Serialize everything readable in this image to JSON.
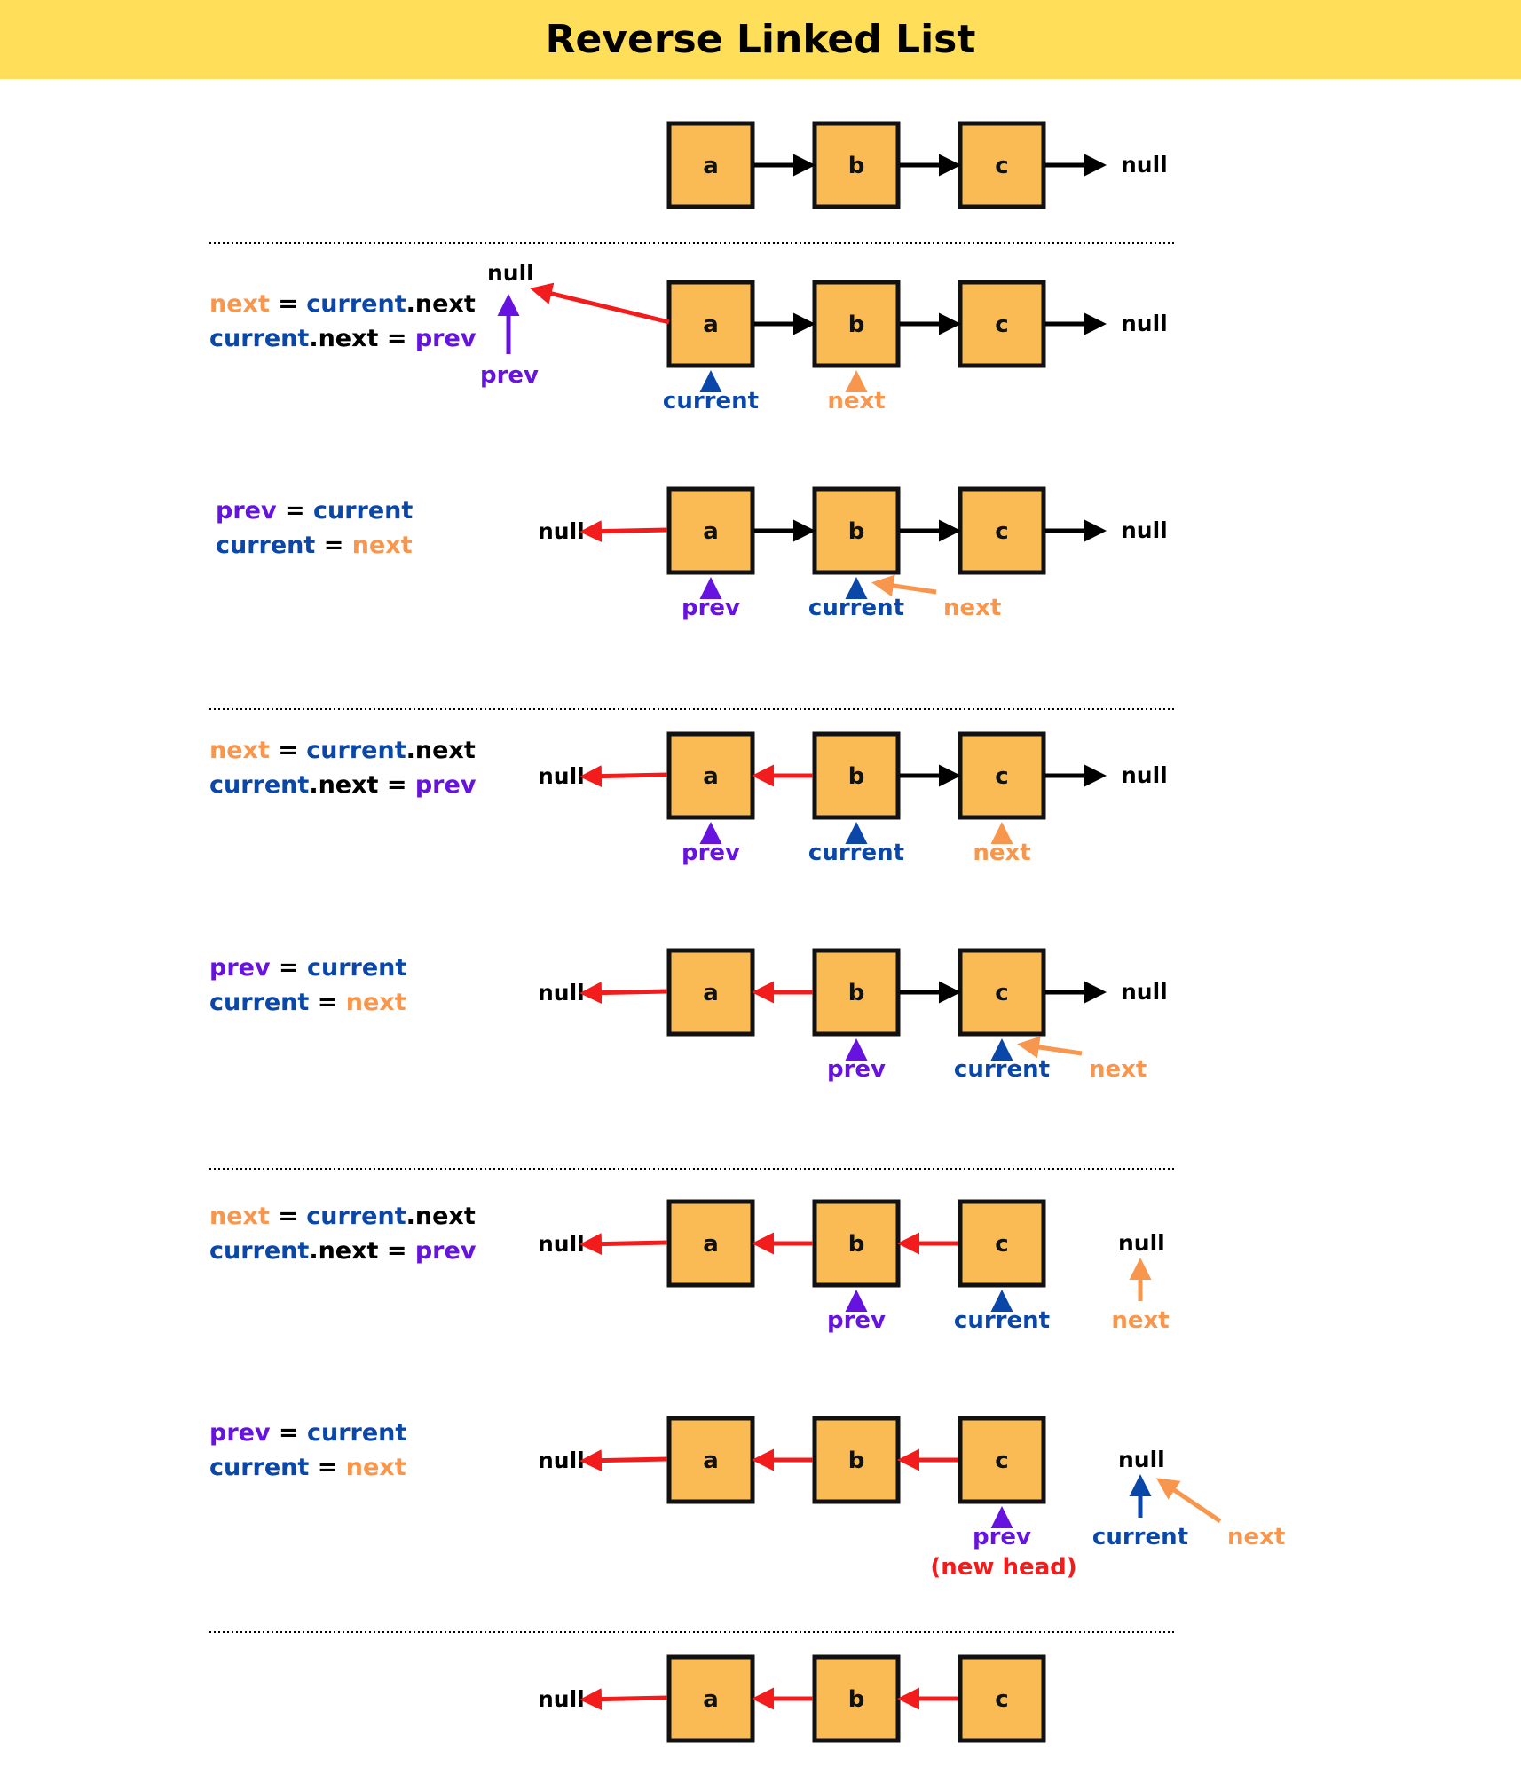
{
  "title": "Reverse Linked List",
  "colors": {
    "node_fill": "#fbbb54",
    "node_stroke": "#111111",
    "header_bg": "#ffde59",
    "forward_link": "#000000",
    "reversed_link": "#f21c1c",
    "current": "#0a47a8",
    "next": "#f9964d",
    "prev": "#6713df",
    "new_head_note": "#f21c1c"
  },
  "labels": {
    "null": "null",
    "prev": "prev",
    "current": "current",
    "next": "next",
    "new_head": "(new head)"
  },
  "code": {
    "step_a": [
      [
        [
          "next",
          "orange"
        ],
        [
          " = ",
          "black"
        ],
        [
          "current",
          "blue"
        ],
        [
          ".next",
          "black"
        ]
      ],
      [
        [
          "current",
          "blue"
        ],
        [
          ".next = ",
          "black"
        ],
        [
          "prev",
          "purple"
        ]
      ]
    ],
    "step_b": [
      [
        [
          "prev",
          "purple"
        ],
        [
          " = ",
          "black"
        ],
        [
          "current",
          "blue"
        ]
      ],
      [
        [
          "current",
          "blue"
        ],
        [
          " = ",
          "black"
        ],
        [
          "next",
          "orange"
        ]
      ]
    ]
  },
  "nodes": [
    "a",
    "b",
    "c"
  ],
  "rows": [
    {
      "links": [
        "none",
        "fwd",
        "fwd",
        "fwd"
      ],
      "head_null": "none",
      "tail_null": true,
      "code": null,
      "pointers": []
    },
    {
      "links": [
        "rev",
        "fwd",
        "fwd",
        "fwd"
      ],
      "head_null": "up",
      "tail_null": true,
      "code": "step_a",
      "pointers": [
        {
          "name": "current",
          "target": "a",
          "style": "up"
        },
        {
          "name": "next",
          "target": "b",
          "style": "up"
        }
      ]
    },
    {
      "links": [
        "rev",
        "fwd",
        "fwd",
        "fwd"
      ],
      "head_null": "left",
      "tail_null": true,
      "code": "step_b",
      "pointers": [
        {
          "name": "prev",
          "target": "a",
          "style": "up"
        },
        {
          "name": "current",
          "target": "b",
          "style": "up"
        },
        {
          "name": "next",
          "target": "b",
          "style": "diag"
        }
      ]
    },
    {
      "links": [
        "rev",
        "rev",
        "fwd",
        "fwd"
      ],
      "head_null": "left",
      "tail_null": true,
      "code": "step_a",
      "pointers": [
        {
          "name": "prev",
          "target": "a",
          "style": "up"
        },
        {
          "name": "current",
          "target": "b",
          "style": "up"
        },
        {
          "name": "next",
          "target": "c",
          "style": "up"
        }
      ]
    },
    {
      "links": [
        "rev",
        "rev",
        "fwd",
        "fwd"
      ],
      "head_null": "left",
      "tail_null": true,
      "code": "step_b",
      "pointers": [
        {
          "name": "prev",
          "target": "b",
          "style": "up"
        },
        {
          "name": "current",
          "target": "c",
          "style": "up"
        },
        {
          "name": "next",
          "target": "c",
          "style": "diag"
        }
      ]
    },
    {
      "links": [
        "rev",
        "rev",
        "rev",
        "none"
      ],
      "head_null": "left",
      "tail_null": true,
      "code": "step_a",
      "pointers": [
        {
          "name": "prev",
          "target": "b",
          "style": "up"
        },
        {
          "name": "current",
          "target": "c",
          "style": "up"
        },
        {
          "name": "next",
          "target": "null",
          "style": "up"
        }
      ]
    },
    {
      "links": [
        "rev",
        "rev",
        "rev",
        "none"
      ],
      "head_null": "left",
      "tail_null": true,
      "code": "step_b",
      "pointers": [
        {
          "name": "prev",
          "target": "c",
          "style": "up",
          "note": "new_head"
        },
        {
          "name": "current",
          "target": "null",
          "style": "up"
        },
        {
          "name": "next",
          "target": "null",
          "style": "diag"
        }
      ]
    },
    {
      "links": [
        "rev",
        "rev",
        "rev",
        "none"
      ],
      "head_null": "left",
      "tail_null": false,
      "code": null,
      "pointers": []
    }
  ]
}
